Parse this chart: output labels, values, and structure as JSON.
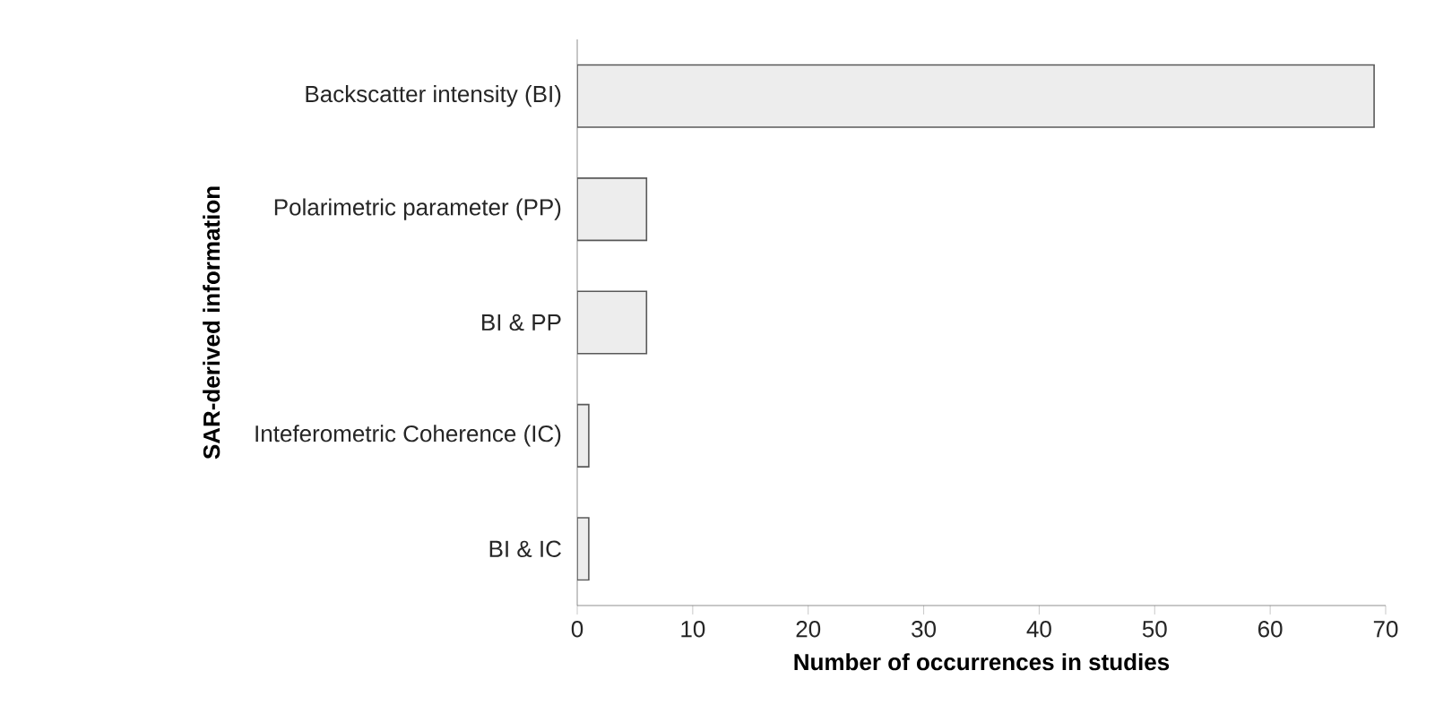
{
  "chart_data": {
    "type": "bar",
    "orientation": "horizontal",
    "xlabel": "Number of occurrences in studies",
    "ylabel": "SAR-derived information",
    "categories": [
      "Backscatter intensity (BI)",
      "Polarimetric parameter (PP)",
      "BI & PP",
      "Inteferometric Coherence (IC)",
      "BI & IC"
    ],
    "values": [
      69,
      6,
      6,
      1,
      1
    ],
    "color": "#ededed",
    "xlim": [
      0,
      70
    ],
    "xticks": [
      0,
      10,
      20,
      30,
      40,
      50,
      60,
      70
    ]
  }
}
